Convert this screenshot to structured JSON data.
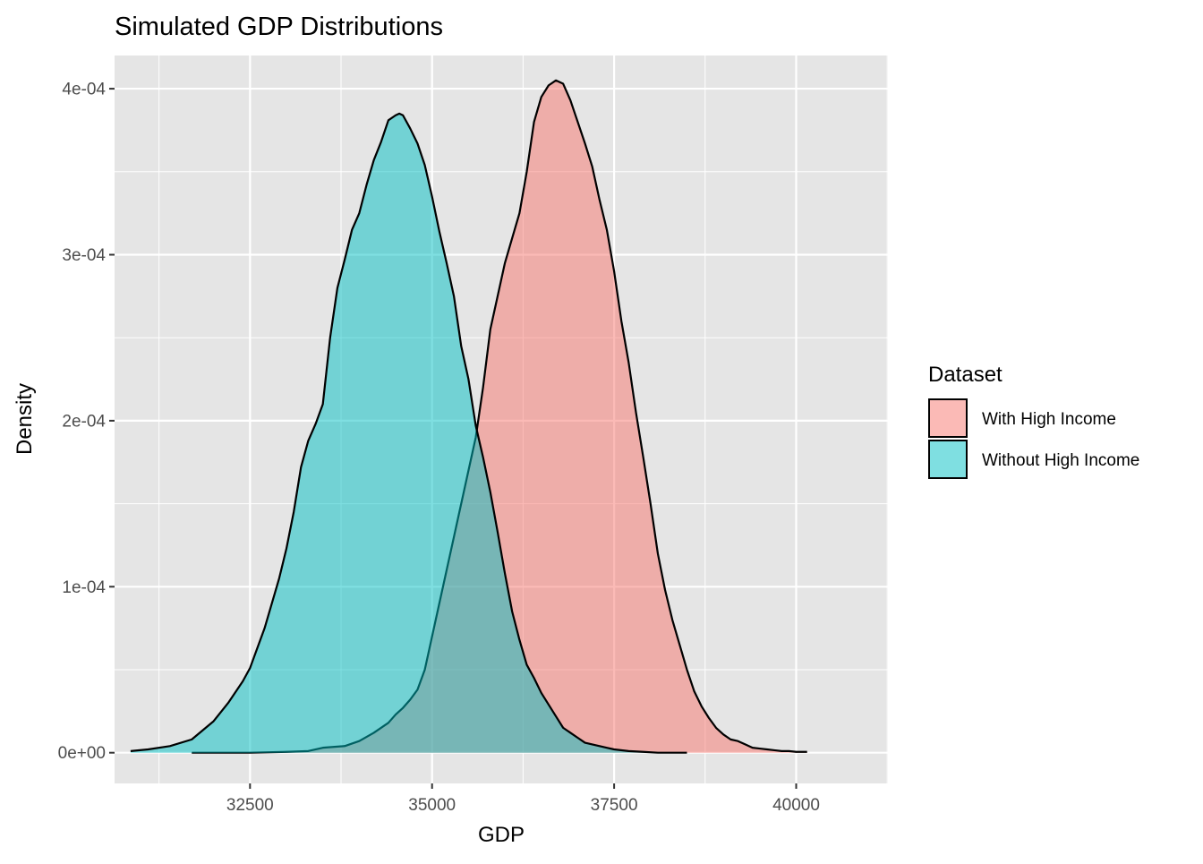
{
  "chart_data": {
    "type": "area",
    "title": "Simulated GDP Distributions",
    "xlabel": "GDP",
    "ylabel": "Density",
    "xlim": [
      30640,
      41260
    ],
    "ylim": [
      -1.85e-05,
      0.00042
    ],
    "x_ticks": [
      32500,
      35000,
      37500,
      40000
    ],
    "x_tick_labels": [
      "32500",
      "35000",
      "37500",
      "40000"
    ],
    "y_ticks": [
      0,
      0.0001,
      0.0002,
      0.0003,
      0.0004
    ],
    "y_tick_labels": [
      "0e+00",
      "1e-04",
      "2e-04",
      "3e-04",
      "4e-04"
    ],
    "grid": true,
    "legend_position": "right",
    "legend_title": "Dataset",
    "colors": {
      "panel_background": "#e5e5e5",
      "grid": "#ffffff",
      "outline": "#000000",
      "with_high_income": "#f8766d",
      "without_high_income": "#00bfc4"
    },
    "fill_opacity": 0.5,
    "series": [
      {
        "name": "With High Income",
        "color": "#f8766d",
        "x": [
          31700,
          32500,
          33000,
          33300,
          33500,
          33800,
          34000,
          34200,
          34400,
          34500,
          34600,
          34700,
          34800,
          34900,
          35000,
          35200,
          35400,
          35500,
          35600,
          35700,
          35800,
          35900,
          36000,
          36100,
          36200,
          36300,
          36400,
          36500,
          36600,
          36700,
          36800,
          36900,
          37000,
          37100,
          37200,
          37300,
          37400,
          37500,
          37600,
          37700,
          37800,
          37900,
          38000,
          38100,
          38200,
          38300,
          38400,
          38500,
          38600,
          38700,
          38800,
          38900,
          39000,
          39100,
          39200,
          39300,
          39400,
          39500,
          39600,
          39700,
          39800,
          39900,
          40000,
          40150
        ],
        "y": [
          0.0,
          0.0,
          5e-07,
          1e-06,
          3e-06,
          4e-06,
          7e-06,
          1.2e-05,
          1.8e-05,
          2.3e-05,
          2.7e-05,
          3.2e-05,
          3.8e-05,
          5e-05,
          7e-05,
          0.00011,
          0.00015,
          0.00017,
          0.00019,
          0.00022,
          0.000255,
          0.000275,
          0.000295,
          0.00031,
          0.000325,
          0.00035,
          0.00038,
          0.000395,
          0.000402,
          0.000405,
          0.000403,
          0.000393,
          0.00038,
          0.000367,
          0.000353,
          0.000333,
          0.000315,
          0.00029,
          0.00026,
          0.000235,
          0.000205,
          0.000178,
          0.00015,
          0.00012,
          9.8e-05,
          8e-05,
          6.5e-05,
          5e-05,
          3.7e-05,
          2.8e-05,
          2.1e-05,
          1.5e-05,
          1.1e-05,
          8e-06,
          7e-06,
          5e-06,
          3e-06,
          2.5e-06,
          2e-06,
          1.5e-06,
          1e-06,
          1e-06,
          5e-07,
          5e-07
        ]
      },
      {
        "name": "Without High Income",
        "color": "#00bfc4",
        "x": [
          30860,
          31100,
          31400,
          31700,
          32000,
          32200,
          32400,
          32500,
          32700,
          32900,
          33000,
          33100,
          33200,
          33300,
          33400,
          33500,
          33600,
          33700,
          33800,
          33900,
          34000,
          34100,
          34200,
          34300,
          34400,
          34500,
          34550,
          34600,
          34700,
          34800,
          34900,
          35000,
          35100,
          35200,
          35300,
          35400,
          35500,
          35600,
          35700,
          35800,
          35900,
          36000,
          36100,
          36200,
          36300,
          36400,
          36500,
          36600,
          36700,
          36800,
          36900,
          37000,
          37100,
          37200,
          37300,
          37400,
          37500,
          37700,
          37900,
          38100,
          38300,
          38500
        ],
        "y": [
          1e-06,
          2e-06,
          4e-06,
          8e-06,
          1.9e-05,
          3e-05,
          4.3e-05,
          5.1e-05,
          7.5e-05,
          0.000105,
          0.000123,
          0.000145,
          0.000172,
          0.000188,
          0.000198,
          0.00021,
          0.00025,
          0.00028,
          0.000297,
          0.000315,
          0.000325,
          0.000342,
          0.000357,
          0.000368,
          0.000381,
          0.000384,
          0.000385,
          0.000384,
          0.000376,
          0.000367,
          0.000354,
          0.000335,
          0.000314,
          0.000295,
          0.000275,
          0.000245,
          0.000225,
          0.000197,
          0.000178,
          0.000157,
          0.000133,
          0.000108,
          8.5e-05,
          6.8e-05,
          5.3e-05,
          4.5e-05,
          3.6e-05,
          2.9e-05,
          2.2e-05,
          1.5e-05,
          1.2e-05,
          9e-06,
          6e-06,
          5e-06,
          4e-06,
          3e-06,
          2e-06,
          1e-06,
          5e-07,
          0.0,
          0.0,
          0.0
        ]
      }
    ]
  }
}
